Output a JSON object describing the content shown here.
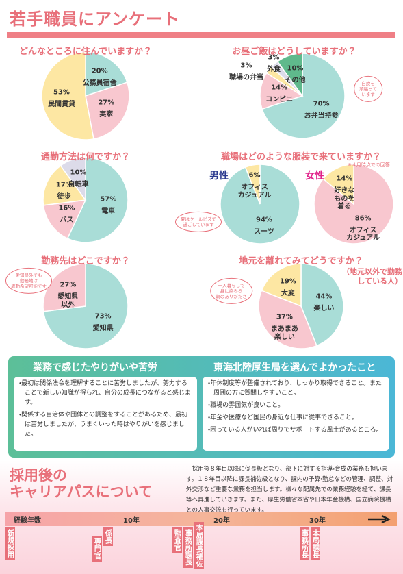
{
  "header": {
    "title": "若手職員にアンケート"
  },
  "chart_data": [
    {
      "type": "pie",
      "title": "どんなところに住んでいますか？",
      "categories": [
        "公務員宿舎",
        "実家",
        "民間賃貸"
      ],
      "values": [
        20,
        27,
        53
      ],
      "value_labels": [
        "20%",
        "27%",
        "53%"
      ],
      "colors": [
        "#a9ddd7",
        "#f8c7cf",
        "#fde7a3"
      ]
    },
    {
      "type": "pie",
      "title": "お昼ご飯はどうしていますか？",
      "categories": [
        "お弁当持参",
        "コンビニ",
        "職場の弁当",
        "外食",
        "その他"
      ],
      "values": [
        70,
        14,
        3,
        3,
        10
      ],
      "value_labels": [
        "70%",
        "14%",
        "3%",
        "3%",
        "10%"
      ],
      "colors": [
        "#a9ddd7",
        "#f8c7cf",
        "#fde7a3",
        "#dcdbe9",
        "#5fb98c"
      ],
      "annotation": "自炊を\n頑張って\nいます"
    },
    {
      "type": "pie",
      "title": "通勤方法は何ですか？",
      "categories": [
        "電車",
        "バス",
        "徒歩",
        "自転車"
      ],
      "values": [
        57,
        16,
        17,
        10
      ],
      "value_labels": [
        "57%",
        "16%",
        "17%",
        "10%"
      ],
      "colors": [
        "#a9ddd7",
        "#f8c7cf",
        "#fde7a3",
        "#dcdbe9"
      ]
    },
    {
      "type": "pie",
      "title": "職場はどのような服装で来ていますか？",
      "name": "男性",
      "categories": [
        "スーツ",
        "オフィス\nカジュアル"
      ],
      "values": [
        94,
        6
      ],
      "value_labels": [
        "94%",
        "6%"
      ],
      "colors": [
        "#a9ddd7",
        "#fde7a3"
      ],
      "annotation": "夏はクールビズで\n過ごしています"
    },
    {
      "type": "pie",
      "name": "女性",
      "note": "※４月時点での回答",
      "categories": [
        "オフィス\nカジュアル",
        "好きな\nものを\n着る"
      ],
      "values": [
        86,
        14
      ],
      "value_labels": [
        "86%",
        "14%"
      ],
      "colors": [
        "#f8c7cf",
        "#fde7a3"
      ]
    },
    {
      "type": "pie",
      "title": "勤務先はどこですか？",
      "categories": [
        "愛知県",
        "愛知県\n以外"
      ],
      "values": [
        73,
        27
      ],
      "value_labels": [
        "73%",
        "27%"
      ],
      "colors": [
        "#a9ddd7",
        "#f8c7cf"
      ],
      "annotation": "愛知県外でも\n勤務地は\n異動希望可能です"
    },
    {
      "type": "pie",
      "title": "地元を離れてみてどうですか？",
      "subtitle": "（地元以外で勤務\nしている人）",
      "categories": [
        "楽しい",
        "まあまあ\n楽しい",
        "大変"
      ],
      "values": [
        44,
        37,
        19
      ],
      "value_labels": [
        "44%",
        "37%",
        "19%"
      ],
      "colors": [
        "#a9ddd7",
        "#f8c7cf",
        "#fde7a3"
      ],
      "annotation": "一人暮らしで\n身に染みる\n親のありがたさ"
    }
  ],
  "worries": {
    "title": "業務で感じたやりがいや苦労",
    "items": [
      "最初は関係法令を理解することに苦労しましたが、努力することで新しい知識が得られ、自分の成長につながると感じます。",
      "関係する自治体や団体との調整をすることがあるため、最初は苦労しましたが、うまくいった時はやりがいを感じました。"
    ]
  },
  "good_points": {
    "title": "東海北陸厚生局を選んでよかったこと",
    "items": [
      "年休制度等が整備されており、しっかり取得できること。また周囲の方に質問しやすいこと。",
      "職場の雰囲気が良いこと。",
      "年金や医療など国民の身近な仕事に従事できること。",
      "困っている人がいれば周りでサポートする風土があるところ。"
    ]
  },
  "career": {
    "title": "採用後の\nキャリアパスについて",
    "text": "採用後８年目以降に係長級となり、部下に対する指導・育成の業務も担います。１８年目以降に課長補佐級となり、課内の予算・勤怠などの管理、調整、対外交渉など重要な業務を担当します。様々な配属先での業務経験を経て、課長等へ昇進していきます。また、厚生労働省本省や日本年金機構、国立病院機構との人事交流も行っています。",
    "axis_label": "経験年数",
    "years": [
      "10年",
      "20年",
      "30年"
    ],
    "positions": [
      "新規採用",
      "係長",
      "専門官",
      "監査官",
      "事務所課長",
      "本局課長補佐",
      "事務所長",
      "本局課長"
    ]
  }
}
